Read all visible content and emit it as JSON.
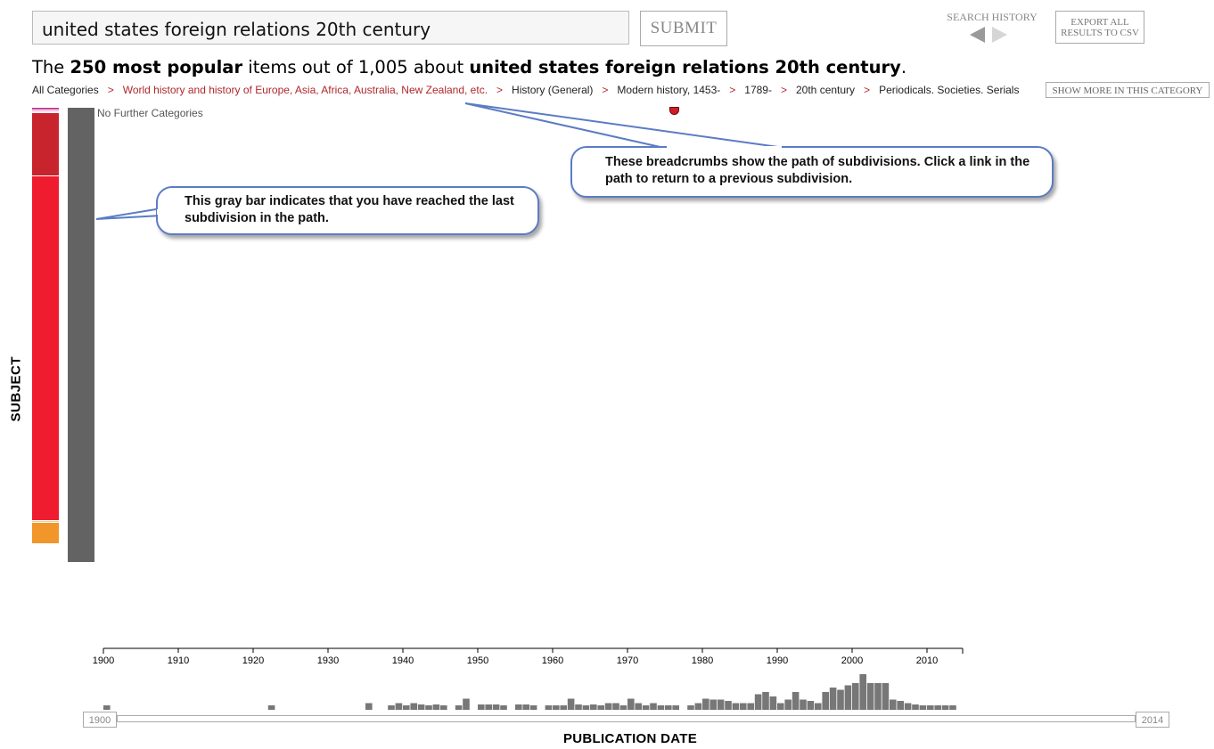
{
  "search": {
    "query": "united states foreign relations 20th century",
    "submit_label": "SUBMIT"
  },
  "history": {
    "label": "SEARCH HISTORY",
    "back_icon": "triangle-left-icon",
    "forward_icon": "triangle-right-icon"
  },
  "export": {
    "line1": "EXPORT ALL",
    "line2": "RESULTS TO CSV"
  },
  "headline": {
    "prefix": "The",
    "count_text": "250 most popular",
    "middle": "items out of 1,005 about",
    "topic": "united states foreign relations 20th century",
    "suffix": "."
  },
  "breadcrumbs": {
    "separator": ">",
    "items": [
      "All Categories",
      "World history and history of Europe, Asia, Africa, Australia, New Zealand, etc.",
      "History (General)",
      "Modern history, 1453-",
      "1789-",
      "20th century",
      "Periodicals. Societies. Serials"
    ],
    "show_more": "SHOW MORE IN THIS CATEGORY"
  },
  "subject": {
    "axis_label": "SUBJECT",
    "no_further": "No Further Categories",
    "segments": [
      {
        "color": "#c0449a",
        "fraction": 0.006
      },
      {
        "color": "#e8a0c8",
        "fraction": 0.004
      },
      {
        "color": "#d63a6e",
        "fraction": 0.003
      },
      {
        "color": "#c8242e",
        "fraction": 0.145
      },
      {
        "color": "#ee1c2e",
        "fraction": 0.79
      },
      {
        "color": "#f5d090",
        "fraction": 0.004
      },
      {
        "color": "#f0962a",
        "fraction": 0.048
      }
    ]
  },
  "callouts": {
    "gray_bar": "This gray bar indicates that you have reached the last subdivision in the path.",
    "breadcrumbs": "These breadcrumbs show the path of subdivisions. Click a link in the path to return to a  previous subdivision."
  },
  "timeline": {
    "axis_label": "PUBLICATION DATE",
    "ticks": [
      "1900",
      "1910",
      "1920",
      "1930",
      "1940",
      "1950",
      "1960",
      "1970",
      "1980",
      "1990",
      "2000",
      "2010"
    ],
    "range_start": "1900",
    "range_end": "2014",
    "x_min": 1900,
    "x_max": 2015,
    "histogram": [
      [
        1900,
        1
      ],
      [
        1922,
        1
      ],
      [
        1935,
        1.5
      ],
      [
        1938,
        1
      ],
      [
        1939,
        1.5
      ],
      [
        1940,
        1
      ],
      [
        1941,
        1.5
      ],
      [
        1942,
        1.2
      ],
      [
        1943,
        1
      ],
      [
        1944,
        1.2
      ],
      [
        1945,
        1
      ],
      [
        1947,
        1
      ],
      [
        1948,
        2.5
      ],
      [
        1950,
        1.2
      ],
      [
        1951,
        1.2
      ],
      [
        1952,
        1.2
      ],
      [
        1953,
        1
      ],
      [
        1955,
        1.2
      ],
      [
        1956,
        1.2
      ],
      [
        1957,
        1
      ],
      [
        1959,
        1
      ],
      [
        1960,
        1
      ],
      [
        1961,
        1
      ],
      [
        1962,
        2.5
      ],
      [
        1963,
        1.2
      ],
      [
        1964,
        1
      ],
      [
        1965,
        1.2
      ],
      [
        1966,
        1
      ],
      [
        1967,
        1.5
      ],
      [
        1968,
        1.5
      ],
      [
        1969,
        1
      ],
      [
        1970,
        2.5
      ],
      [
        1971,
        1.5
      ],
      [
        1972,
        1
      ],
      [
        1973,
        1.5
      ],
      [
        1974,
        1
      ],
      [
        1975,
        1
      ],
      [
        1976,
        1
      ],
      [
        1978,
        1
      ],
      [
        1979,
        1.5
      ],
      [
        1980,
        2.5
      ],
      [
        1981,
        2.3
      ],
      [
        1982,
        2.3
      ],
      [
        1983,
        2
      ],
      [
        1984,
        1.5
      ],
      [
        1985,
        1.5
      ],
      [
        1986,
        1.5
      ],
      [
        1987,
        3.5
      ],
      [
        1988,
        4
      ],
      [
        1989,
        3
      ],
      [
        1990,
        1.5
      ],
      [
        1991,
        2.3
      ],
      [
        1992,
        4
      ],
      [
        1993,
        2.3
      ],
      [
        1994,
        2
      ],
      [
        1995,
        1.5
      ],
      [
        1996,
        4
      ],
      [
        1997,
        5
      ],
      [
        1998,
        4.5
      ],
      [
        1999,
        5.5
      ],
      [
        2000,
        6
      ],
      [
        2001,
        8
      ],
      [
        2002,
        6
      ],
      [
        2003,
        6
      ],
      [
        2004,
        6
      ],
      [
        2005,
        2.3
      ],
      [
        2006,
        2
      ],
      [
        2007,
        1.5
      ],
      [
        2008,
        1.2
      ],
      [
        2009,
        1
      ],
      [
        2010,
        1
      ],
      [
        2011,
        1
      ],
      [
        2012,
        1
      ],
      [
        2013,
        1
      ]
    ]
  },
  "pointer_color": "#5b7cc4"
}
